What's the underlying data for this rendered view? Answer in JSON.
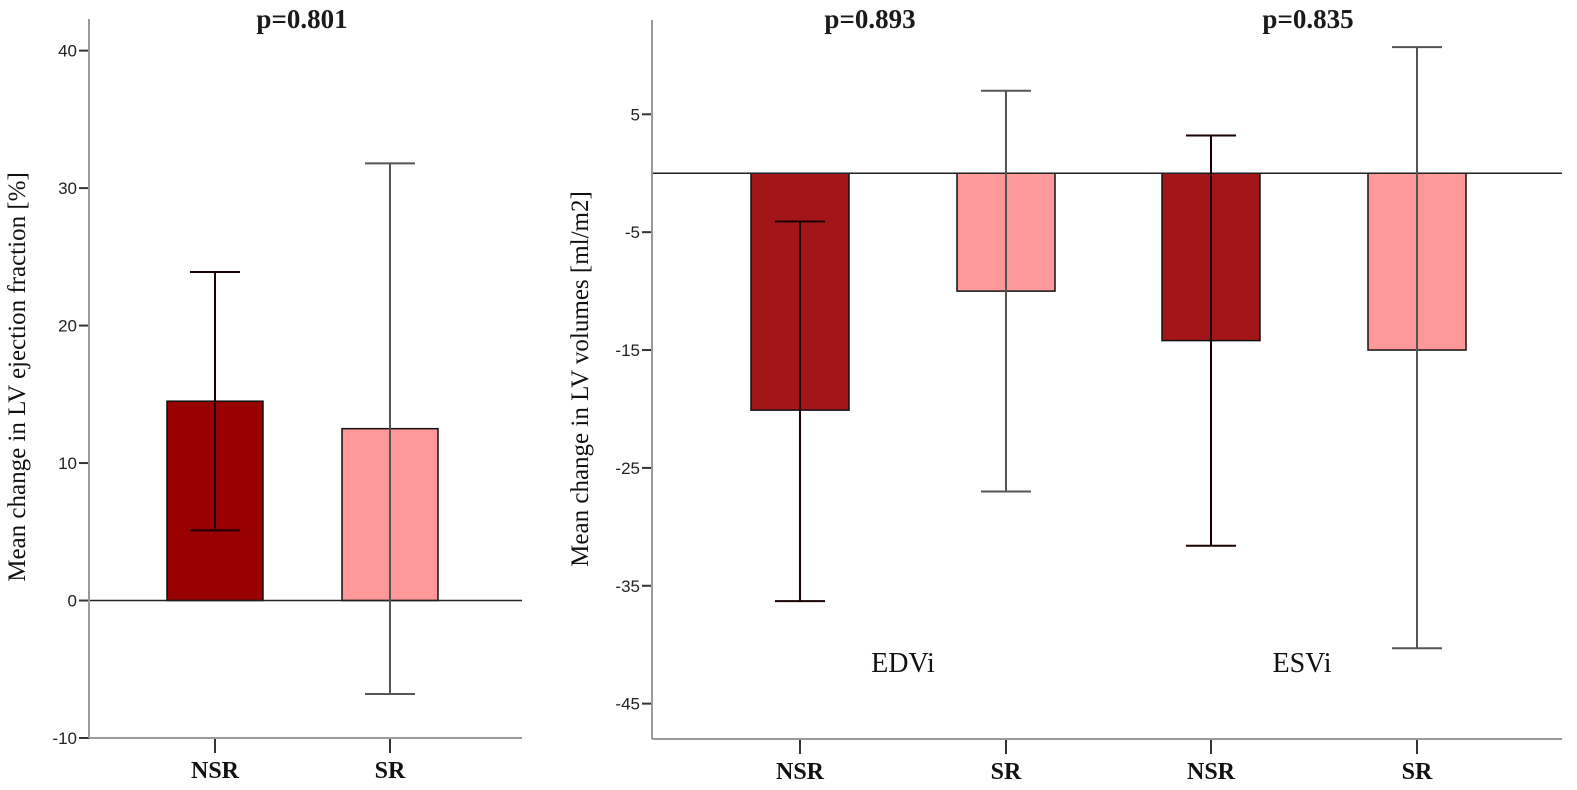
{
  "chart_data": [
    {
      "type": "bar",
      "title": "p=0.801",
      "xlabel": "",
      "ylabel": "Mean change in LV ejection fraction [%]",
      "ylim": [
        -10,
        42.3
      ],
      "yticks": [
        40,
        30,
        20,
        10,
        0,
        -10
      ],
      "ytick_labels": [
        "40",
        "30",
        "20",
        "10",
        "0",
        "-10"
      ],
      "grid": false,
      "legend": null,
      "categories": [
        "NSR",
        "SR"
      ],
      "bars": [
        {
          "category": "NSR",
          "value": 14.5,
          "error_low": 5.1,
          "error_high": 23.9,
          "color": "#990000"
        },
        {
          "category": "SR",
          "value": 12.5,
          "error_low": -6.8,
          "error_high": 31.8,
          "color": "#FF9999"
        }
      ]
    },
    {
      "type": "bar",
      "title": "",
      "xlabel": "",
      "ylabel": "Mean change in LV volumes [ml/m2]",
      "ylim": [
        -48,
        13
      ],
      "yticks": [
        5,
        -5,
        -15,
        -25,
        -35,
        -45
      ],
      "ytick_labels": [
        "5",
        "-5",
        "-15",
        "-25",
        "-35",
        "-45"
      ],
      "grid": false,
      "legend": null,
      "groups": [
        {
          "name": "EDVi",
          "p_value_label": "p=0.893",
          "bars": [
            {
              "category": "NSR",
              "value": -20.1,
              "error_low": -36.3,
              "error_high": -4.1,
              "color": "#A2161A"
            },
            {
              "category": "SR",
              "value": -10.0,
              "error_low": -27.0,
              "error_high": 7.0,
              "color": "#FF9999"
            }
          ]
        },
        {
          "name": "ESVi",
          "p_value_label": "p=0.835",
          "bars": [
            {
              "category": "NSR",
              "value": -14.2,
              "error_low": -31.6,
              "error_high": 3.2,
              "color": "#A2161A"
            },
            {
              "category": "SR",
              "value": -15.0,
              "error_low": -40.3,
              "error_high": 10.7,
              "color": "#FF9999"
            }
          ]
        }
      ]
    }
  ],
  "labels": {
    "left_p": "p=0.801",
    "right_p1": "p=0.893",
    "right_p2": "p=0.835",
    "left_ylabel": "Mean change in LV ejection fraction [%]",
    "right_ylabel": "Mean change in LV volumes [ml/m2]",
    "group1": "EDVi",
    "group2": "ESVi"
  }
}
